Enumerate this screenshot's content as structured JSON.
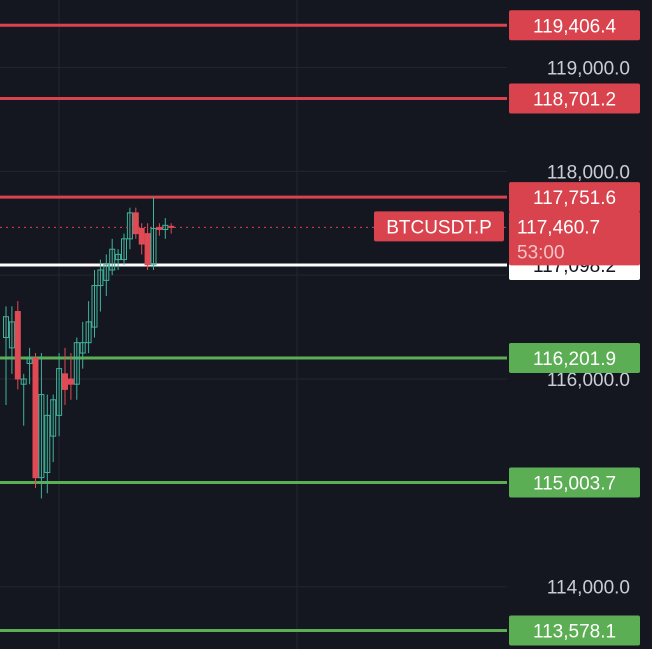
{
  "chart_data": {
    "type": "candlestick",
    "symbol": "BTCUSDT.P",
    "last_price": "117,460.7",
    "countdown": "53:00",
    "y_axis": {
      "range": [
        113400,
        119650
      ],
      "tick_labels": [
        "119,000.0",
        "118,000.0",
        "116,000.0",
        "114,000.0"
      ],
      "tick_values": [
        119000,
        118000,
        116000,
        114000
      ]
    },
    "grid": true,
    "horizontal_levels": [
      {
        "value": 119406.4,
        "label": "119,406.4",
        "kind": "resistance"
      },
      {
        "value": 118701.2,
        "label": "118,701.2",
        "kind": "resistance"
      },
      {
        "value": 117751.6,
        "label": "117,751.6",
        "kind": "resistance"
      },
      {
        "value": 117098.2,
        "label": "117,098.2",
        "kind": "marker"
      },
      {
        "value": 116201.9,
        "label": "116,201.9",
        "kind": "support"
      },
      {
        "value": 115003.7,
        "label": "115,003.7",
        "kind": "support"
      },
      {
        "value": 113578.1,
        "label": "113,578.1",
        "kind": "support"
      }
    ],
    "candles": [
      {
        "o": 116400,
        "h": 116700,
        "l": 115750,
        "c": 116600
      },
      {
        "o": 116300,
        "h": 116700,
        "l": 116050,
        "c": 116550
      },
      {
        "o": 116650,
        "h": 116750,
        "l": 115900,
        "c": 116000
      },
      {
        "o": 115950,
        "h": 116050,
        "l": 115550,
        "c": 116000
      },
      {
        "o": 116150,
        "h": 116300,
        "l": 115950,
        "c": 116200
      },
      {
        "o": 116200,
        "h": 116250,
        "l": 114950,
        "c": 115050
      },
      {
        "o": 115050,
        "h": 116250,
        "l": 114850,
        "c": 115850
      },
      {
        "o": 115100,
        "h": 115850,
        "l": 114900,
        "c": 115650
      },
      {
        "o": 115450,
        "h": 115850,
        "l": 115200,
        "c": 115800
      },
      {
        "o": 115650,
        "h": 116250,
        "l": 115450,
        "c": 116100
      },
      {
        "o": 116050,
        "h": 116300,
        "l": 115750,
        "c": 115900
      },
      {
        "o": 116000,
        "h": 116250,
        "l": 115800,
        "c": 115950
      },
      {
        "o": 115950,
        "h": 116400,
        "l": 115800,
        "c": 116350
      },
      {
        "o": 116250,
        "h": 116550,
        "l": 116100,
        "c": 116350
      },
      {
        "o": 116350,
        "h": 116750,
        "l": 116250,
        "c": 116550
      },
      {
        "o": 116500,
        "h": 117050,
        "l": 116400,
        "c": 116900
      },
      {
        "o": 116900,
        "h": 117150,
        "l": 116650,
        "c": 117050
      },
      {
        "o": 116950,
        "h": 117200,
        "l": 116800,
        "c": 117100
      },
      {
        "o": 117050,
        "h": 117350,
        "l": 117000,
        "c": 117250
      },
      {
        "o": 117150,
        "h": 117250,
        "l": 117050,
        "c": 117200
      },
      {
        "o": 117150,
        "h": 117400,
        "l": 117100,
        "c": 117350
      },
      {
        "o": 117350,
        "h": 117650,
        "l": 117250,
        "c": 117600
      },
      {
        "o": 117600,
        "h": 117650,
        "l": 117350,
        "c": 117400
      },
      {
        "o": 117450,
        "h": 117500,
        "l": 117200,
        "c": 117300
      },
      {
        "o": 117400,
        "h": 117500,
        "l": 117050,
        "c": 117100
      },
      {
        "o": 117100,
        "h": 117750,
        "l": 117050,
        "c": 117450
      },
      {
        "o": 117460,
        "h": 117500,
        "l": 117380,
        "c": 117440
      },
      {
        "o": 117440,
        "h": 117550,
        "l": 117350,
        "c": 117480
      },
      {
        "o": 117470,
        "h": 117500,
        "l": 117400,
        "c": 117460
      }
    ]
  },
  "colors": {
    "background": "#151720",
    "grid": "#22252f",
    "up": "#3fb39b",
    "down": "#e04a55",
    "resistance": "#d9434e",
    "support": "#5cae55",
    "marker_line": "#ffffff",
    "axis_text": "#c9cdd6"
  }
}
